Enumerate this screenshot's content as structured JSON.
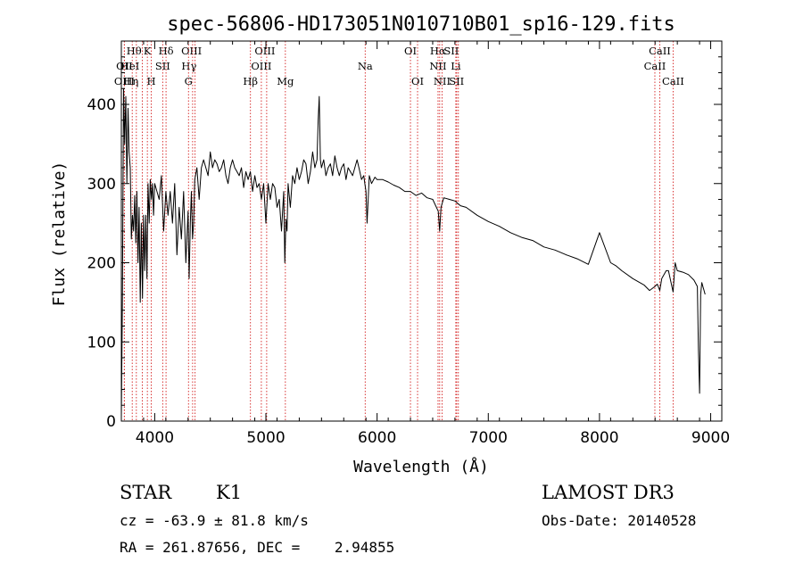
{
  "chart_data": {
    "type": "line",
    "title": "spec-56806-HD173051N010710B01_sp16-129.fits",
    "xlabel": "Wavelength (Å)",
    "ylabel": "Flux (relative)",
    "xlim": [
      3700,
      9100
    ],
    "ylim": [
      0,
      480
    ],
    "xticks": [
      4000,
      5000,
      6000,
      7000,
      8000,
      9000
    ],
    "yticks": [
      0,
      100,
      200,
      300,
      400
    ],
    "series": [
      {
        "name": "spectrum",
        "x": [
          3700,
          3710,
          3720,
          3730,
          3740,
          3750,
          3760,
          3770,
          3780,
          3790,
          3800,
          3810,
          3820,
          3830,
          3840,
          3850,
          3860,
          3870,
          3880,
          3890,
          3900,
          3910,
          3920,
          3930,
          3940,
          3950,
          3960,
          3970,
          3980,
          3990,
          4000,
          4020,
          4040,
          4060,
          4080,
          4100,
          4120,
          4140,
          4160,
          4180,
          4200,
          4220,
          4240,
          4260,
          4280,
          4300,
          4310,
          4320,
          4330,
          4340,
          4350,
          4360,
          4380,
          4400,
          4420,
          4440,
          4460,
          4480,
          4500,
          4520,
          4540,
          4560,
          4580,
          4600,
          4620,
          4640,
          4660,
          4680,
          4700,
          4720,
          4740,
          4760,
          4780,
          4800,
          4820,
          4840,
          4860,
          4880,
          4900,
          4920,
          4940,
          4960,
          4980,
          5000,
          5020,
          5040,
          5060,
          5080,
          5100,
          5120,
          5140,
          5160,
          5170,
          5180,
          5190,
          5200,
          5220,
          5240,
          5260,
          5280,
          5300,
          5320,
          5340,
          5360,
          5380,
          5400,
          5420,
          5440,
          5460,
          5470,
          5480,
          5490,
          5500,
          5520,
          5540,
          5560,
          5580,
          5600,
          5620,
          5640,
          5660,
          5680,
          5700,
          5720,
          5740,
          5760,
          5780,
          5800,
          5820,
          5840,
          5860,
          5880,
          5890,
          5900,
          5910,
          5930,
          5950,
          5980,
          6000,
          6050,
          6100,
          6150,
          6200,
          6250,
          6300,
          6350,
          6400,
          6450,
          6500,
          6550,
          6563,
          6575,
          6600,
          6650,
          6700,
          6750,
          6800,
          6900,
          7000,
          7100,
          7200,
          7300,
          7400,
          7500,
          7600,
          7700,
          7800,
          7900,
          8000,
          8100,
          8150,
          8200,
          8300,
          8400,
          8450,
          8498,
          8520,
          8542,
          8560,
          8600,
          8620,
          8662,
          8680,
          8700,
          8750,
          8800,
          8850,
          8880,
          8890,
          8900,
          8910,
          8920,
          8930,
          8940,
          8950
        ],
        "values": [
          5,
          155,
          420,
          350,
          410,
          300,
          395,
          340,
          320,
          230,
          260,
          240,
          285,
          225,
          290,
          200,
          270,
          150,
          250,
          155,
          260,
          190,
          260,
          180,
          300,
          250,
          305,
          280,
          300,
          260,
          300,
          290,
          280,
          310,
          240,
          290,
          260,
          290,
          250,
          300,
          210,
          270,
          230,
          290,
          200,
          265,
          180,
          250,
          290,
          230,
          250,
          305,
          320,
          280,
          320,
          330,
          320,
          310,
          340,
          320,
          330,
          325,
          315,
          320,
          330,
          310,
          300,
          320,
          330,
          320,
          315,
          310,
          320,
          295,
          315,
          305,
          315,
          290,
          310,
          295,
          300,
          280,
          300,
          250,
          300,
          280,
          300,
          295,
          270,
          280,
          240,
          290,
          200,
          255,
          240,
          300,
          270,
          310,
          300,
          320,
          305,
          315,
          330,
          325,
          300,
          315,
          340,
          320,
          330,
          380,
          410,
          330,
          320,
          330,
          310,
          320,
          325,
          310,
          335,
          320,
          310,
          320,
          325,
          305,
          320,
          315,
          310,
          320,
          330,
          318,
          305,
          310,
          300,
          290,
          250,
          310,
          300,
          308,
          305,
          305,
          302,
          298,
          295,
          290,
          290,
          285,
          288,
          282,
          280,
          265,
          240,
          270,
          282,
          280,
          278,
          272,
          270,
          260,
          252,
          246,
          238,
          232,
          228,
          220,
          216,
          210,
          205,
          198,
          238,
          200,
          196,
          190,
          180,
          172,
          165,
          170,
          173,
          165,
          180,
          190,
          190,
          163,
          200,
          190,
          188,
          185,
          178,
          170,
          90,
          35,
          160,
          175,
          170,
          165,
          160
        ]
      }
    ],
    "line_marks": [
      {
        "label": "Hθ",
        "x": 3798,
        "row": 1,
        "dx": 2
      },
      {
        "label": "OII",
        "x": 3727,
        "row": 2,
        "dx": 0
      },
      {
        "label": "OIII",
        "x": 3727,
        "row": 3,
        "dx": 0
      },
      {
        "label": "K",
        "x": 3934,
        "row": 1,
        "dx": 0
      },
      {
        "label": "Hη",
        "x": 3835,
        "row": 3,
        "dx": -6
      },
      {
        "label": "HeI",
        "x": 3889,
        "row": 2,
        "dx": -14
      },
      {
        "label": "H",
        "x": 3969,
        "row": 3,
        "dx": 0
      },
      {
        "label": "Hδ",
        "x": 4102,
        "row": 1,
        "dx": 0
      },
      {
        "label": "SII",
        "x": 4072,
        "row": 2,
        "dx": 0
      },
      {
        "label": "OIII",
        "x": 4363,
        "row": 1,
        "dx": -4
      },
      {
        "label": "Hγ",
        "x": 4341,
        "row": 2,
        "dx": -4
      },
      {
        "label": "G",
        "x": 4304,
        "row": 3,
        "dx": 0
      },
      {
        "label": "OIII",
        "x": 5007,
        "row": 1,
        "dx": -2
      },
      {
        "label": "OIII",
        "x": 4959,
        "row": 2,
        "dx": 0
      },
      {
        "label": "Hβ",
        "x": 4861,
        "row": 3,
        "dx": 0
      },
      {
        "label": "Mg",
        "x": 5175,
        "row": 3,
        "dx": 0
      },
      {
        "label": "Na",
        "x": 5893,
        "row": 2,
        "dx": 0
      },
      {
        "label": "OI",
        "x": 6300,
        "row": 1,
        "dx": 0
      },
      {
        "label": "OI",
        "x": 6364,
        "row": 3,
        "dx": 0
      },
      {
        "label": "Hα",
        "x": 6563,
        "row": 1,
        "dx": -2
      },
      {
        "label": "SII",
        "x": 6716,
        "row": 1,
        "dx": -6
      },
      {
        "label": "NII",
        "x": 6548,
        "row": 2,
        "dx": 0
      },
      {
        "label": "Li",
        "x": 6708,
        "row": 2,
        "dx": 0
      },
      {
        "label": "NII",
        "x": 6584,
        "row": 3,
        "dx": 0
      },
      {
        "label": "SII",
        "x": 6731,
        "row": 3,
        "dx": -2
      },
      {
        "label": "CaII",
        "x": 8542,
        "row": 1,
        "dx": 0
      },
      {
        "label": "CaII",
        "x": 8498,
        "row": 2,
        "dx": 0
      },
      {
        "label": "CaII",
        "x": 8662,
        "row": 3,
        "dx": 0
      }
    ]
  },
  "info": {
    "class": "STAR",
    "subclass": "K1",
    "survey": "LAMOST DR3",
    "cz": "cz = -63.9 ± 81.8 km/s",
    "obs_date": "Obs-Date: 20140528",
    "radec": "RA = 261.87656, DEC =    2.94855"
  }
}
